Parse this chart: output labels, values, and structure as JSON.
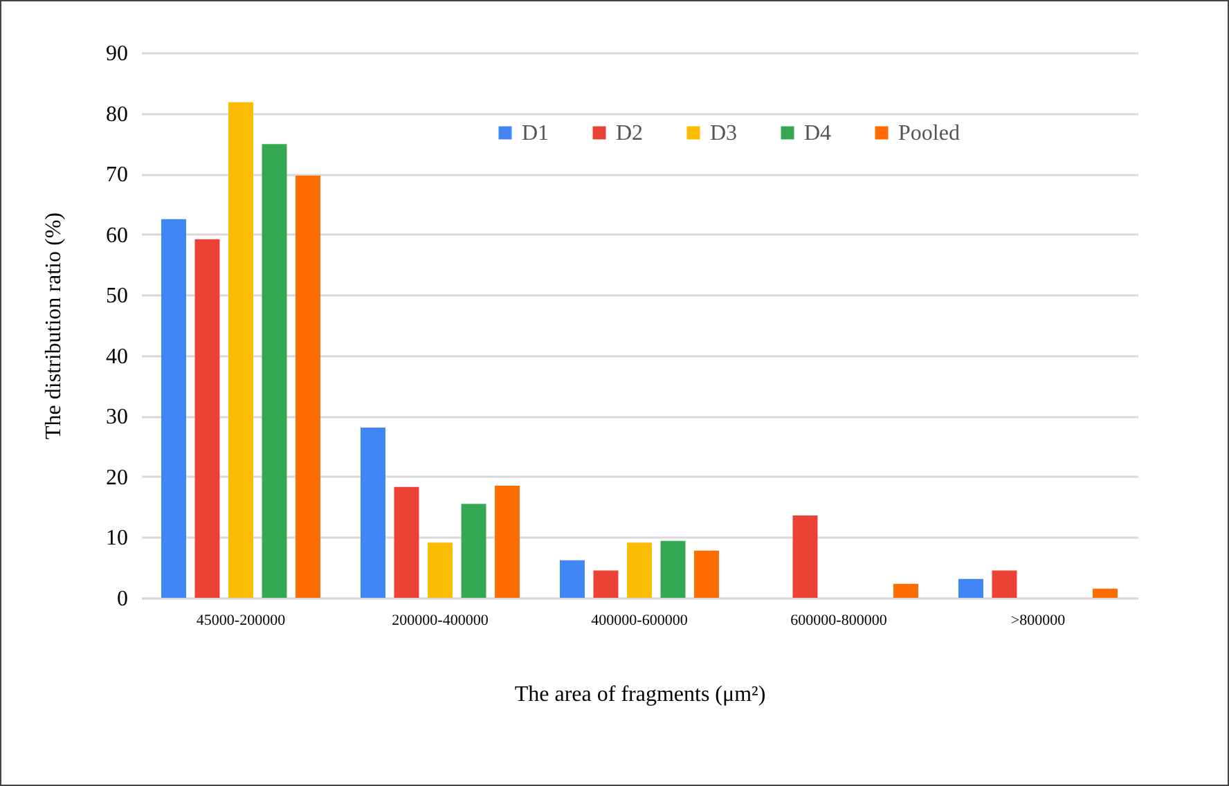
{
  "chart_data": {
    "type": "bar",
    "xlabel": "The area of fragments (μm²)",
    "ylabel": "The distribution ratio (%)",
    "categories": [
      "45000-200000",
      "200000-400000",
      "400000-600000",
      "600000-800000",
      ">800000"
    ],
    "series": [
      {
        "name": "D1",
        "color": "#4285f4",
        "values": [
          62.5,
          28.1,
          6.2,
          null,
          3.1
        ]
      },
      {
        "name": "D2",
        "color": "#ea4335",
        "values": [
          59.2,
          18.3,
          4.5,
          13.6,
          4.5
        ]
      },
      {
        "name": "D3",
        "color": "#fbbc04",
        "values": [
          81.8,
          9.1,
          9.1,
          null,
          null
        ]
      },
      {
        "name": "D4",
        "color": "#34a853",
        "values": [
          74.9,
          15.5,
          9.4,
          null,
          null
        ]
      },
      {
        "name": "Pooled",
        "color": "#ff6d01",
        "values": [
          69.7,
          18.5,
          7.8,
          2.3,
          1.5
        ]
      }
    ],
    "ylim": [
      0,
      90
    ],
    "yticks": [
      0,
      10,
      20,
      30,
      40,
      50,
      60,
      70,
      80,
      90
    ],
    "grid": "y",
    "legend": "top right"
  }
}
